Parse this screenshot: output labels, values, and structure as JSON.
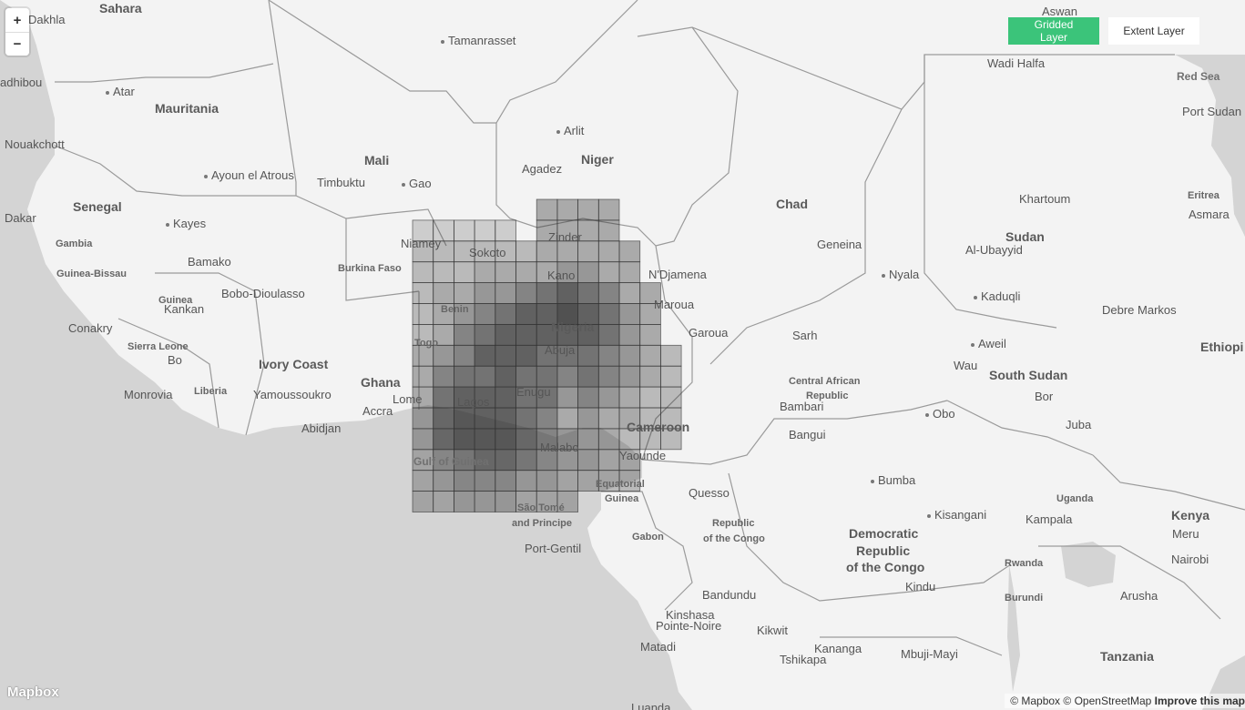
{
  "controls": {
    "zoom_in": "+",
    "zoom_out": "−",
    "gridded_layer": "Gridded Layer",
    "extent_layer": "Extent Layer",
    "accent_color": "#3bc47a"
  },
  "attribution": {
    "mapbox": "© Mapbox",
    "osm": "© OpenStreetMap",
    "improve": "Improve this map"
  },
  "logo": "Mapbox",
  "labels": {
    "countries": [
      "Sahara",
      "Mauritania",
      "Mali",
      "Niger",
      "Chad",
      "Sudan",
      "Senegal",
      "Gambia",
      "Guinea-Bissau",
      "Guinea",
      "Burkina Faso",
      "Benin",
      "Togo",
      "Nigeria",
      "Ivory Coast",
      "Ghana",
      "Sierra Leone",
      "Liberia",
      "Cameroon",
      "Central African Republic",
      "South Sudan",
      "Eritrea",
      "Ethiopia",
      "Equatorial Guinea",
      "Gabon",
      "Republic of the Congo",
      "Democratic Republic of the Congo",
      "Uganda",
      "Kenya",
      "Rwanda",
      "Burundi",
      "Tanzania",
      "São Tomé and Principe"
    ],
    "cities": [
      "Dakhla",
      "Aswan",
      "Tamanrasset",
      "Wadi Halfa",
      "Nouadhibou",
      "Atar",
      "Red Sea",
      "Port Sudan",
      "Arlit",
      "Nouakchott",
      "Agadez",
      "Ayoun el Atrous",
      "Timbuktu",
      "Gao",
      "Khartoum",
      "Asmara",
      "Dakar",
      "Kayes",
      "Niamey",
      "Sokoto",
      "Zinder",
      "Geneina",
      "Al-Ubayyid",
      "Bamako",
      "Kano",
      "N'Djamena",
      "Nyala",
      "Bobo-Dioulasso",
      "Kaduqli",
      "Maroua",
      "Debre Markos",
      "Kankan",
      "Garoua",
      "Conakry",
      "Sarh",
      "Aweil",
      "Bo",
      "Abuja",
      "Wau",
      "Yamoussoukro",
      "Monrovia",
      "Lome",
      "Enugu",
      "Bambari",
      "Bor",
      "Accra",
      "Lagos",
      "Obo",
      "Juba",
      "Abidjan",
      "Malabo",
      "Bangui",
      "Yaounde",
      "Bumba",
      "Quesso",
      "Kisangani",
      "Kampala",
      "Meru",
      "Nairobi",
      "Port-Gentil",
      "Bandundu",
      "Kindu",
      "Arusha",
      "Kinshasa",
      "Pointe-Noire",
      "Kikwit",
      "Kananga",
      "Mbuji-Mayi",
      "Matadi",
      "Tshikapa",
      "Luanda",
      "Gulf of Guinea"
    ]
  },
  "grid_data": {
    "description": "",
    "rows": [
      [
        0,
        0,
        0,
        0,
        0,
        0,
        3,
        3,
        3,
        3,
        0,
        0,
        0
      ],
      [
        1,
        1,
        1,
        1,
        1,
        0,
        3,
        3,
        3,
        3,
        0,
        0,
        0
      ],
      [
        2,
        2,
        2,
        2,
        2,
        2,
        3,
        3,
        3,
        3,
        3,
        0,
        0
      ],
      [
        2,
        2,
        2,
        3,
        3,
        3,
        3,
        4,
        4,
        3,
        3,
        0,
        0
      ],
      [
        2,
        3,
        3,
        4,
        4,
        5,
        6,
        7,
        6,
        5,
        3,
        3,
        0
      ],
      [
        2,
        3,
        4,
        5,
        6,
        7,
        7,
        8,
        7,
        6,
        4,
        3,
        0
      ],
      [
        2,
        3,
        5,
        6,
        7,
        7,
        7,
        7,
        7,
        6,
        4,
        3,
        0
      ],
      [
        3,
        4,
        5,
        7,
        7,
        7,
        6,
        6,
        6,
        5,
        4,
        3,
        2
      ],
      [
        3,
        5,
        6,
        6,
        7,
        6,
        6,
        5,
        6,
        5,
        4,
        3,
        2
      ],
      [
        3,
        6,
        7,
        7,
        7,
        6,
        6,
        4,
        5,
        4,
        3,
        2,
        2
      ],
      [
        3,
        6,
        7,
        7,
        7,
        6,
        5,
        3,
        4,
        3,
        3,
        2,
        2
      ],
      [
        3,
        6,
        7,
        7,
        7,
        6,
        5,
        4,
        3,
        3,
        2,
        2,
        2
      ],
      [
        2,
        4,
        5,
        6,
        6,
        5,
        4,
        3,
        3,
        2,
        2,
        0,
        0
      ],
      [
        2,
        3,
        4,
        4,
        4,
        3,
        3,
        2,
        2,
        2,
        2,
        0,
        0
      ],
      [
        2,
        2,
        3,
        3,
        3,
        2,
        2,
        2,
        0,
        0,
        0,
        0,
        0
      ]
    ]
  }
}
